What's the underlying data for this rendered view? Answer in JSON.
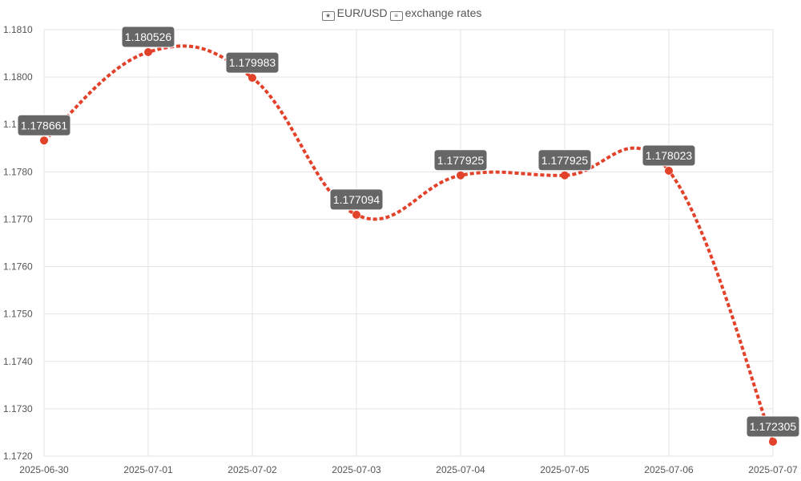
{
  "title": {
    "left_icon": "eu-flag-icon",
    "text": "EUR/USD",
    "right_icon": "us-flag-icon",
    "suffix": "exchange rates"
  },
  "colors": {
    "line": "#e2412a",
    "point": "#e2412a",
    "label_bg": "#666666",
    "label_text": "#ffffff",
    "grid": "#e3e3e3",
    "tick_text": "#555555"
  },
  "chart_data": {
    "type": "line",
    "title": "EUR/USD exchange rates",
    "x": [
      "2025-06-30",
      "2025-07-01",
      "2025-07-02",
      "2025-07-03",
      "2025-07-04",
      "2025-07-05",
      "2025-07-06",
      "2025-07-07"
    ],
    "series": [
      {
        "values": [
          1.178661,
          1.180526,
          1.179983,
          1.177094,
          1.177925,
          1.177925,
          1.178023,
          1.172305
        ],
        "labels": [
          "1.178661",
          "1.180526",
          "1.179983",
          "1.177094",
          "1.177925",
          "1.177925",
          "1.178023",
          "1.172305"
        ]
      }
    ],
    "ylim": [
      1.172,
      1.181
    ],
    "yticks": [
      "1.1720",
      "1.1730",
      "1.1740",
      "1.1750",
      "1.1760",
      "1.1770",
      "1.1780",
      "1.1790",
      "1.1800",
      "1.1810"
    ],
    "line_style": "dotted, smoothed",
    "grid": true,
    "legend": "none"
  }
}
